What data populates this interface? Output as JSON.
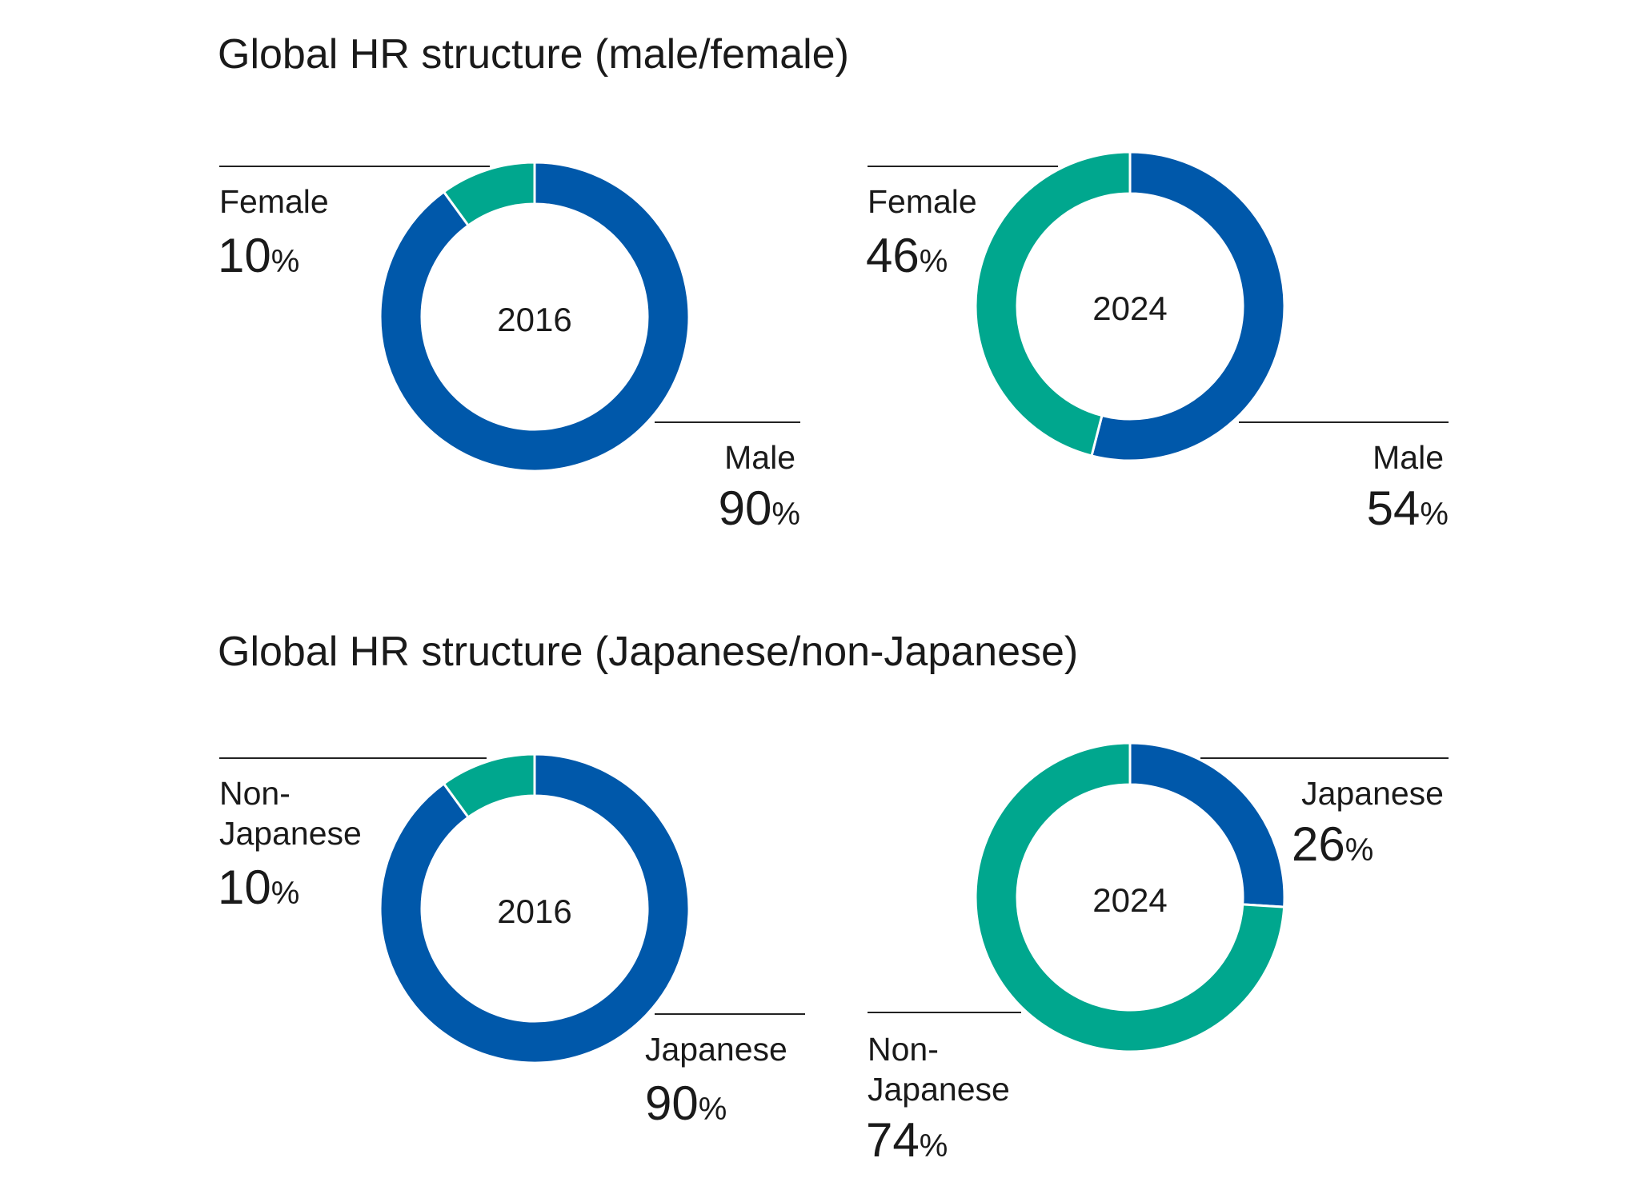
{
  "colors": {
    "primary": "#0058aa",
    "secondary": "#00a78e"
  },
  "sections": [
    {
      "title": "Global HR structure (male/female)"
    },
    {
      "title": "Global HR structure (Japanese/non-Japanese)"
    }
  ],
  "chart_data": [
    {
      "type": "pie",
      "title": "Global HR structure (male/female)",
      "center_label": "2016",
      "slices": [
        {
          "label": "Male",
          "value": 90,
          "display": "90",
          "color": "primary"
        },
        {
          "label": "Female",
          "value": 10,
          "display": "10",
          "color": "secondary"
        }
      ]
    },
    {
      "type": "pie",
      "title": "Global HR structure (male/female)",
      "center_label": "2024",
      "slices": [
        {
          "label": "Male",
          "value": 54,
          "display": "54",
          "color": "primary"
        },
        {
          "label": "Female",
          "value": 46,
          "display": "46",
          "color": "secondary"
        }
      ]
    },
    {
      "type": "pie",
      "title": "Global HR structure (Japanese/non-Japanese)",
      "center_label": "2016",
      "slices": [
        {
          "label": "Japanese",
          "value": 90,
          "display": "90",
          "color": "primary"
        },
        {
          "label": "Non-Japanese",
          "value": 10,
          "display": "10",
          "color": "secondary"
        }
      ]
    },
    {
      "type": "pie",
      "title": "Global HR structure (Japanese/non-Japanese)",
      "center_label": "2024",
      "slices": [
        {
          "label": "Japanese",
          "value": 26,
          "display": "26",
          "color": "primary"
        },
        {
          "label": "Non-Japanese",
          "value": 74,
          "display": "74",
          "color": "secondary"
        }
      ]
    }
  ]
}
